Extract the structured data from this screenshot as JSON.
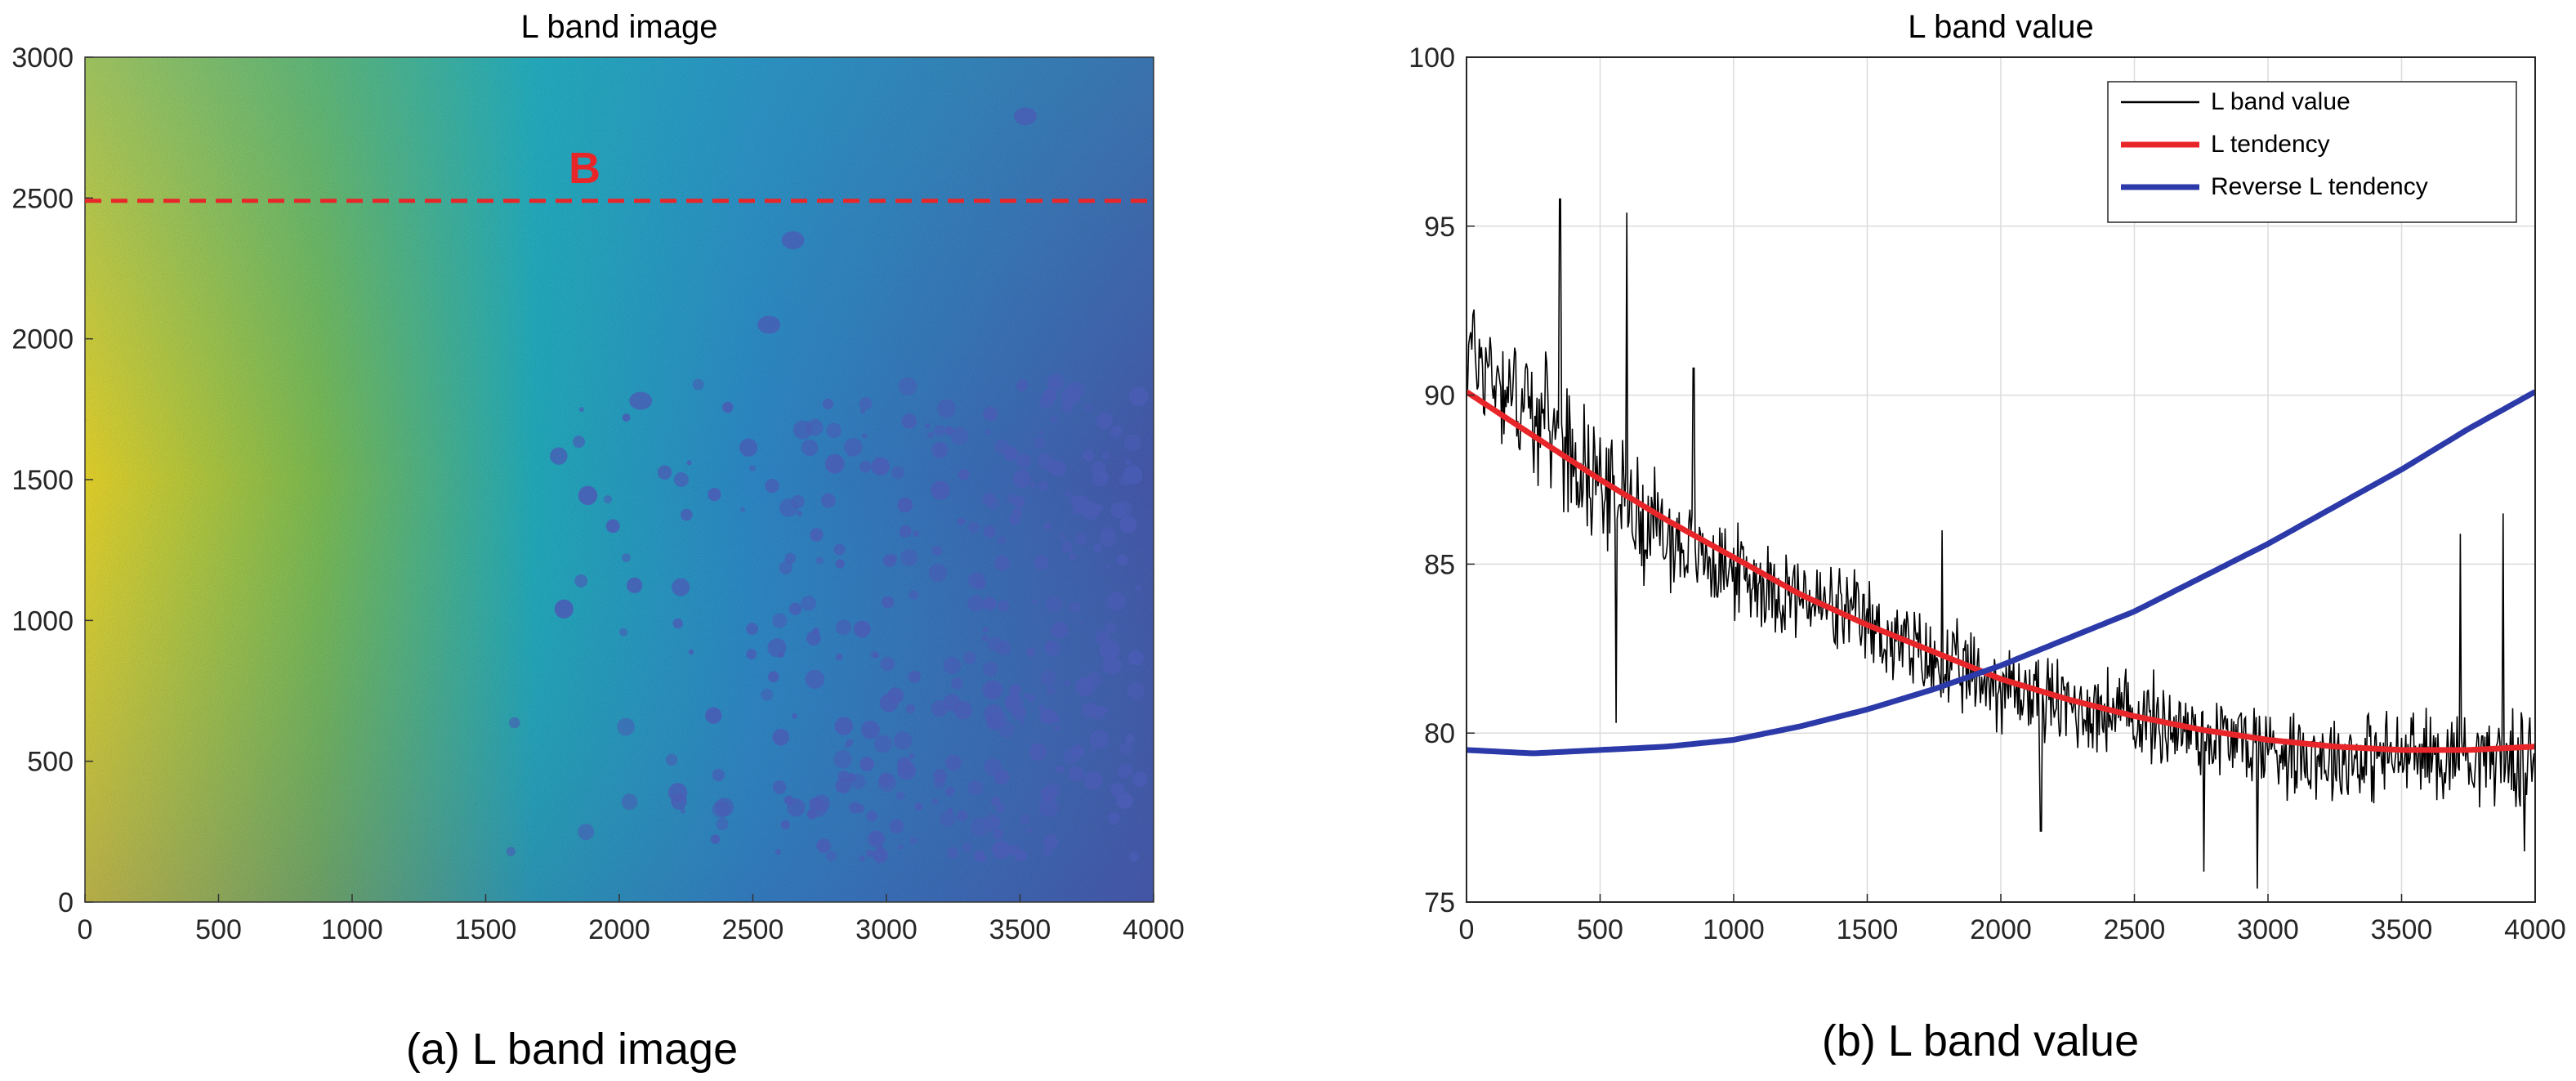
{
  "colors": {
    "yellow": "#f0dc2c",
    "green": "#82c456",
    "teal": "#24b3c4",
    "blue": "#2f8fd0",
    "spot": "#4a5cb4",
    "red_line": "#e8262a",
    "black_line": "#000000",
    "blue_line": "#2b3aa8"
  },
  "captions": {
    "a": "(a)  L  band  image",
    "b": "(b)  L  band  value"
  },
  "chart_data": [
    {
      "type": "heatmap",
      "title": "L band image",
      "xlabel": "",
      "ylabel": "",
      "xlim": [
        0,
        4000
      ],
      "ylim": [
        0,
        3000
      ],
      "xticks": [
        "0",
        "500",
        "1000",
        "1500",
        "2000",
        "2500",
        "3000",
        "3500",
        "4000"
      ],
      "yticks": [
        "0",
        "500",
        "1000",
        "1500",
        "2000",
        "2500",
        "3000"
      ],
      "colormap": "parula",
      "gradient": "yellow at x≈0 fading to blue at x≈4000, dark blue spots concentrated at x 2500–4000, y 200–1600",
      "annotation": {
        "text": "B",
        "line_y": 2490,
        "line_style": "dashed",
        "color": "#e8262a"
      },
      "grid": false
    },
    {
      "type": "line",
      "title": "L band value",
      "xlabel": "",
      "ylabel": "",
      "xlim": [
        0,
        4000
      ],
      "ylim": [
        75,
        100
      ],
      "xticks": [
        "0",
        "500",
        "1000",
        "1500",
        "2000",
        "2500",
        "3000",
        "3500",
        "4000"
      ],
      "yticks": [
        "75",
        "80",
        "85",
        "90",
        "95",
        "100"
      ],
      "grid": true,
      "legend_position": "top-right",
      "series": [
        {
          "name": "L band value",
          "color": "#000000",
          "x": [
            0,
            250,
            500,
            750,
            1000,
            1250,
            1500,
            1750,
            2000,
            2250,
            2500,
            2750,
            3000,
            3250,
            3500,
            3750,
            4000
          ],
          "values": [
            91.5,
            89.5,
            87.5,
            85.8,
            84.8,
            84.0,
            83.2,
            82.0,
            81.4,
            80.8,
            80.5,
            80.0,
            79.6,
            79.3,
            79.3,
            79.4,
            79.1
          ],
          "noise_amplitude": 2.2,
          "spikes": [
            [
              350,
              95.8
            ],
            [
              600,
              95.4
            ],
            [
              560,
              80.3
            ],
            [
              850,
              90.8
            ],
            [
              1780,
              86.0
            ],
            [
              2150,
              77.1
            ],
            [
              2760,
              75.9
            ],
            [
              2960,
              75.4
            ],
            [
              3720,
              85.9
            ],
            [
              3880,
              86.5
            ],
            [
              3960,
              76.5
            ]
          ]
        },
        {
          "name": "L tendency",
          "color": "#e8262a",
          "x": [
            0,
            250,
            500,
            750,
            1000,
            1250,
            1500,
            1750,
            2000,
            2250,
            2500,
            2750,
            3000,
            3250,
            3500,
            3750,
            4000
          ],
          "values": [
            90.1,
            88.8,
            87.5,
            86.3,
            85.2,
            84.1,
            83.2,
            82.4,
            81.6,
            81.0,
            80.5,
            80.1,
            79.8,
            79.6,
            79.5,
            79.5,
            79.6
          ]
        },
        {
          "name": "Reverse L tendency",
          "color": "#2b3aa8",
          "x": [
            0,
            250,
            500,
            750,
            1000,
            1250,
            1500,
            1750,
            2000,
            2250,
            2500,
            2750,
            3000,
            3250,
            3500,
            3750,
            4000
          ],
          "values": [
            79.5,
            79.4,
            79.5,
            79.6,
            79.8,
            80.2,
            80.7,
            81.3,
            82.0,
            82.8,
            83.6,
            84.6,
            85.6,
            86.7,
            87.8,
            89.0,
            90.1
          ]
        }
      ]
    }
  ]
}
